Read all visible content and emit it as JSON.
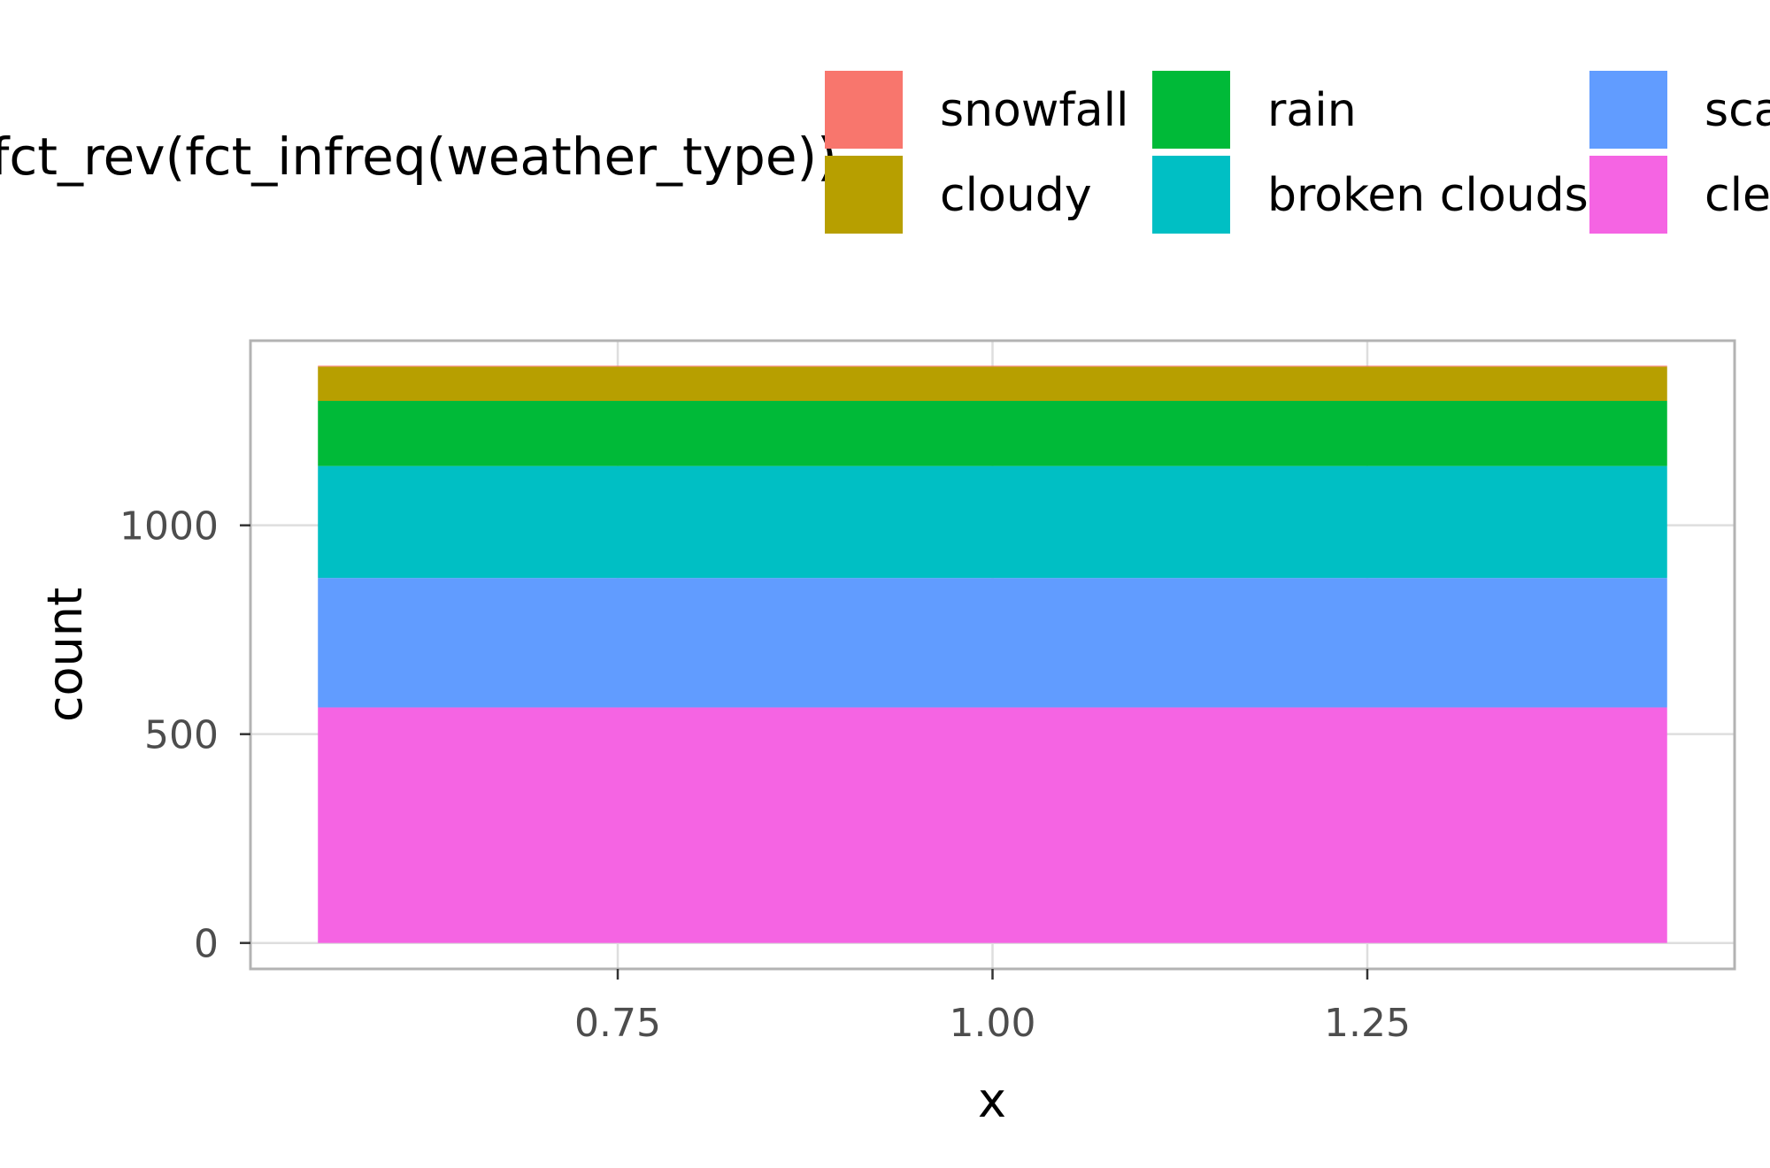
{
  "chart_data": {
    "type": "bar",
    "stacked": true,
    "xlabel": "x",
    "ylabel": "count",
    "x": [
      1.0
    ],
    "xlim": [
      0.505,
      1.495
    ],
    "ylim": [
      -62.1,
      1442.1
    ],
    "x_ticks": [
      0.75,
      1.0,
      1.25
    ],
    "x_tick_labels": [
      "0.75",
      "1.00",
      "1.25"
    ],
    "y_ticks": [
      0,
      500,
      1000
    ],
    "y_tick_labels": [
      "0",
      "500",
      "1000"
    ],
    "grid": true,
    "legend": {
      "title": "fct_rev(fct_infreq(weather_type))",
      "position": "top",
      "entries": [
        "snowfall",
        "cloudy",
        "rain",
        "broken clouds",
        "scattered clouds",
        "clear"
      ],
      "visible_labels": [
        "snowfall",
        "cloudy",
        "rain",
        "broken clouds",
        "sca",
        "clea"
      ]
    },
    "series": [
      {
        "name": "clear",
        "values": [
          564
        ],
        "color": "#F564E3"
      },
      {
        "name": "scattered clouds",
        "values": [
          310
        ],
        "color": "#619CFF"
      },
      {
        "name": "broken clouds",
        "values": [
          268
        ],
        "color": "#00BFC4"
      },
      {
        "name": "rain",
        "values": [
          156
        ],
        "color": "#00BA38"
      },
      {
        "name": "cloudy",
        "values": [
          82
        ],
        "color": "#B79F00"
      },
      {
        "name": "snowfall",
        "values": [
          2
        ],
        "color": "#F8766D"
      }
    ]
  }
}
